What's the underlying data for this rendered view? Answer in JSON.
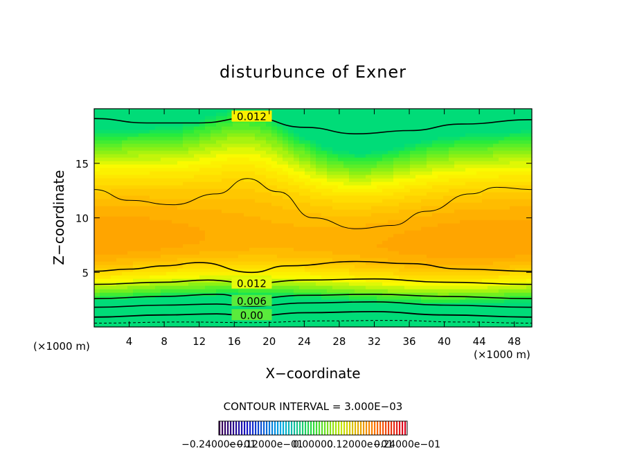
{
  "chart_data": {
    "type": "heatmap",
    "title": "disturbunce of Exner",
    "xlabel": "X−coordinate",
    "ylabel": "Z−coordinate",
    "x_unit_label_left": "(×1000 m)",
    "x_unit_label_right": "(×1000 m)",
    "xlim": [
      0,
      50
    ],
    "ylim": [
      0,
      20
    ],
    "x_ticks": [
      4,
      8,
      12,
      16,
      20,
      24,
      28,
      32,
      36,
      40,
      44,
      48
    ],
    "x_tick_labels": [
      "4",
      "8",
      "12",
      "16",
      "20",
      "24",
      "28",
      "32",
      "36",
      "40",
      "44",
      "48"
    ],
    "y_ticks": [
      5,
      10,
      15
    ],
    "y_tick_labels": [
      "5",
      "10",
      "15"
    ],
    "contour_interval_text": "CONTOUR INTERVAL = 3.000E−03",
    "contour_labels": [
      {
        "text": "0.012",
        "x": 18,
        "z": 19.2
      },
      {
        "text": "0.012",
        "x": 18,
        "z": 3.9
      },
      {
        "text": "0.006",
        "x": 18,
        "z": 2.3
      },
      {
        "text": "0.00",
        "x": 18,
        "z": 1.0
      }
    ],
    "colorbar_labels": [
      "−0.24000e−01",
      "−0.12000e−01",
      "0.00000",
      "0.12000e−01",
      "0.24000e−01"
    ],
    "colorbar_range": [
      -0.024,
      0.024
    ],
    "grid": false
  }
}
